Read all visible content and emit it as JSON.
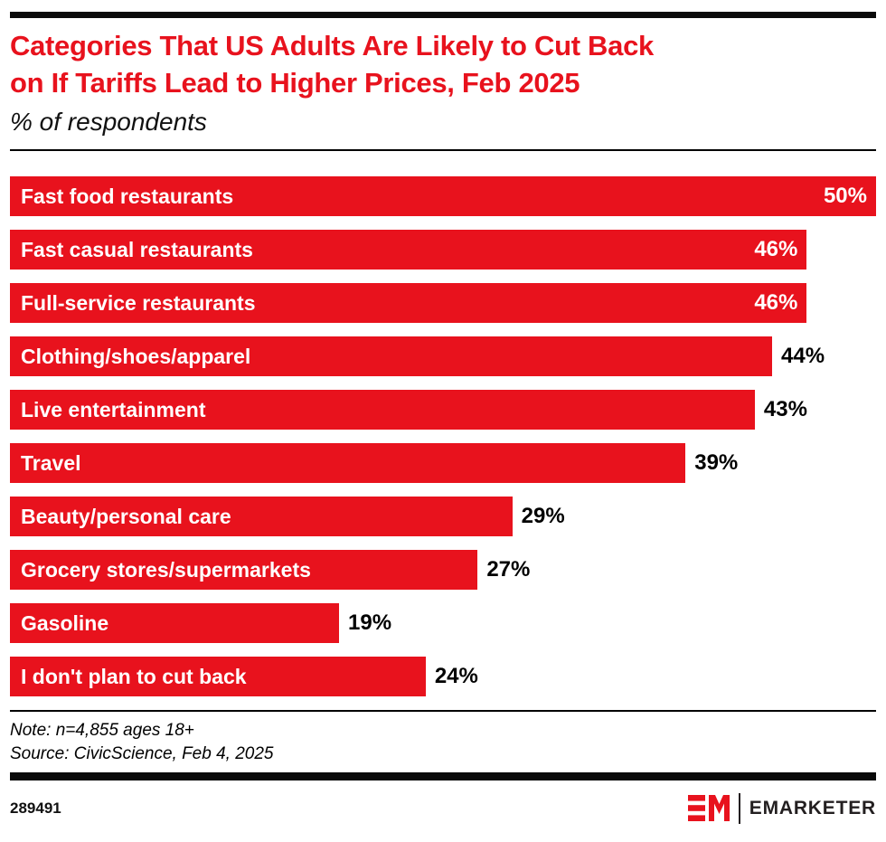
{
  "colors": {
    "red": "#e8121d",
    "black": "#0a0a0a",
    "white": "#ffffff",
    "brand_dark": "#231f20"
  },
  "header": {
    "title_line1": "Categories That US Adults Are Likely to Cut Back",
    "title_line2": "on If Tariffs Lead to Higher Prices, Feb 2025",
    "subtitle": "% of respondents"
  },
  "chart_data": {
    "type": "bar",
    "orientation": "horizontal",
    "title": "Categories That US Adults Are Likely to Cut Back on If Tariffs Lead to Higher Prices, Feb 2025",
    "subtitle": "% of respondents",
    "unit": "%",
    "xlim": [
      0,
      50
    ],
    "grid": false,
    "legend": false,
    "bar_color": "#e8121d",
    "categories": [
      "Fast food restaurants",
      "Fast casual restaurants",
      "Full-service restaurants",
      "Clothing/shoes/apparel",
      "Live entertainment",
      "Travel",
      "Beauty/personal care",
      "Grocery stores/supermarkets",
      "Gasoline",
      "I don't plan to cut back"
    ],
    "values": [
      50,
      46,
      46,
      44,
      43,
      39,
      29,
      27,
      19,
      24
    ],
    "bars": [
      {
        "label": "Fast food restaurants",
        "value": 50,
        "display": "50%",
        "value_inside": true
      },
      {
        "label": "Fast casual restaurants",
        "value": 46,
        "display": "46%",
        "value_inside": true
      },
      {
        "label": "Full-service restaurants",
        "value": 46,
        "display": "46%",
        "value_inside": true
      },
      {
        "label": "Clothing/shoes/apparel",
        "value": 44,
        "display": "44%",
        "value_inside": false
      },
      {
        "label": "Live entertainment",
        "value": 43,
        "display": "43%",
        "value_inside": false
      },
      {
        "label": "Travel",
        "value": 39,
        "display": "39%",
        "value_inside": false
      },
      {
        "label": "Beauty/personal care",
        "value": 29,
        "display": "29%",
        "value_inside": false
      },
      {
        "label": "Grocery stores/supermarkets",
        "value": 27,
        "display": "27%",
        "value_inside": false
      },
      {
        "label": "Gasoline",
        "value": 19,
        "display": "19%",
        "value_inside": false
      },
      {
        "label": "I don't plan to cut back",
        "value": 24,
        "display": "24%",
        "value_inside": false
      }
    ]
  },
  "footer": {
    "note": "Note: n=4,855 ages 18+",
    "source": "Source: CivicScience, Feb 4, 2025",
    "chart_id": "289491",
    "brand_name": "EMARKETER"
  }
}
